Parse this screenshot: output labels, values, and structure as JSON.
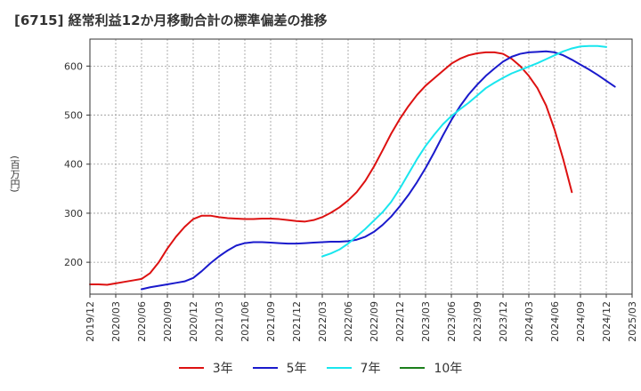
{
  "chart_data": {
    "type": "line",
    "title": "[6715]  経常利益12か月移動合計の標準偏差の推移",
    "ylabel": "(百万円)",
    "xlabel": "",
    "ylim": [
      135,
      655
    ],
    "yticks": [
      200,
      300,
      400,
      500,
      600
    ],
    "x_ticks": [
      "2019/12",
      "2020/03",
      "2020/06",
      "2020/09",
      "2020/12",
      "2021/03",
      "2021/06",
      "2021/09",
      "2021/12",
      "2022/03",
      "2022/06",
      "2022/09",
      "2022/12",
      "2023/03",
      "2023/06",
      "2023/09",
      "2023/12",
      "2024/03",
      "2024/06",
      "2024/09",
      "2024/12",
      "2025/03"
    ],
    "grid": true,
    "legend_position": "bottom",
    "series": [
      {
        "name": "3年",
        "color": "#dd1111",
        "start": "2019/12",
        "values": [
          155,
          155,
          154,
          157,
          160,
          163,
          166,
          178,
          200,
          228,
          252,
          272,
          288,
          295,
          295,
          292,
          290,
          289,
          288,
          288,
          289,
          289,
          288,
          286,
          284,
          283,
          286,
          292,
          301,
          312,
          326,
          343,
          366,
          395,
          428,
          462,
          492,
          518,
          541,
          560,
          575,
          590,
          605,
          615,
          622,
          626,
          628,
          628,
          625,
          615,
          600,
          580,
          555,
          520,
          470,
          410,
          343
        ]
      },
      {
        "name": "5年",
        "color": "#1a1acc",
        "start": "2020/06",
        "values": [
          145,
          149,
          152,
          155,
          158,
          161,
          168,
          182,
          198,
          212,
          224,
          234,
          239,
          241,
          241,
          240,
          239,
          238,
          238,
          239,
          240,
          241,
          242,
          242,
          243,
          246,
          252,
          262,
          276,
          293,
          314,
          337,
          363,
          392,
          424,
          458,
          490,
          518,
          542,
          562,
          580,
          595,
          609,
          619,
          625,
          628,
          629,
          630,
          628,
          622,
          613,
          603,
          593,
          582,
          570,
          558
        ]
      },
      {
        "name": "7年",
        "color": "#19e6ee",
        "start": "2022/03",
        "values": [
          212,
          218,
          226,
          238,
          253,
          268,
          285,
          302,
          323,
          350,
          380,
          410,
          437,
          460,
          481,
          498,
          512,
          525,
          540,
          555,
          566,
          576,
          585,
          592,
          599,
          606,
          614,
          622,
          630,
          636,
          640,
          641,
          641,
          639
        ]
      },
      {
        "name": "10年",
        "color": "#1b7f1b",
        "start": "2025/03",
        "values": []
      }
    ]
  }
}
